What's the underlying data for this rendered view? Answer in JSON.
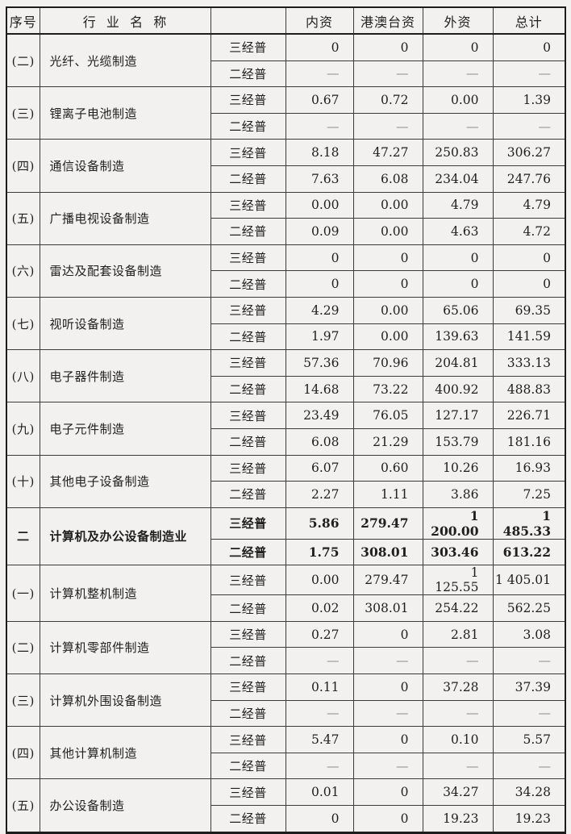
{
  "page": {
    "background_color": "#f2f1ef",
    "border_color": "#1d1d1d",
    "text_color": "#1f1f1f",
    "dash_color": "#8f8f8f"
  },
  "table": {
    "header": [
      "序号",
      "行  业  名  称",
      "",
      "内资",
      "港澳台资",
      "外资",
      "总计"
    ],
    "census_labels": [
      "三经普",
      "二经普"
    ],
    "groups": [
      {
        "no": "(二)",
        "industry": "光纤、光缆制造",
        "bold": false,
        "rows": [
          {
            "census": "三经普",
            "values": [
              "0",
              "0",
              "0",
              "0"
            ]
          },
          {
            "census": "二经普",
            "values": [
              "—",
              "—",
              "—",
              "—"
            ]
          }
        ]
      },
      {
        "no": "(三)",
        "industry": "锂离子电池制造",
        "bold": false,
        "rows": [
          {
            "census": "三经普",
            "values": [
              "0.67",
              "0.72",
              "0.00",
              "1.39"
            ]
          },
          {
            "census": "二经普",
            "values": [
              "—",
              "—",
              "—",
              "—"
            ]
          }
        ]
      },
      {
        "no": "(四)",
        "industry": "通信设备制造",
        "bold": false,
        "rows": [
          {
            "census": "三经普",
            "values": [
              "8.18",
              "47.27",
              "250.83",
              "306.27"
            ]
          },
          {
            "census": "二经普",
            "values": [
              "7.63",
              "6.08",
              "234.04",
              "247.76"
            ]
          }
        ]
      },
      {
        "no": "(五)",
        "industry": "广播电视设备制造",
        "bold": false,
        "rows": [
          {
            "census": "三经普",
            "values": [
              "0.00",
              "0.00",
              "4.79",
              "4.79"
            ]
          },
          {
            "census": "二经普",
            "values": [
              "0.09",
              "0.00",
              "4.63",
              "4.72"
            ]
          }
        ]
      },
      {
        "no": "(六)",
        "industry": "雷达及配套设备制造",
        "bold": false,
        "rows": [
          {
            "census": "三经普",
            "values": [
              "0",
              "0",
              "0",
              "0"
            ]
          },
          {
            "census": "二经普",
            "values": [
              "0",
              "0",
              "0",
              "0"
            ]
          }
        ]
      },
      {
        "no": "(七)",
        "industry": "视听设备制造",
        "bold": false,
        "rows": [
          {
            "census": "三经普",
            "values": [
              "4.29",
              "0.00",
              "65.06",
              "69.35"
            ]
          },
          {
            "census": "二经普",
            "values": [
              "1.97",
              "0.00",
              "139.63",
              "141.59"
            ]
          }
        ]
      },
      {
        "no": "(八)",
        "industry": "电子器件制造",
        "bold": false,
        "rows": [
          {
            "census": "三经普",
            "values": [
              "57.36",
              "70.96",
              "204.81",
              "333.13"
            ]
          },
          {
            "census": "二经普",
            "values": [
              "14.68",
              "73.22",
              "400.92",
              "488.83"
            ]
          }
        ]
      },
      {
        "no": "(九)",
        "industry": "电子元件制造",
        "bold": false,
        "rows": [
          {
            "census": "三经普",
            "values": [
              "23.49",
              "76.05",
              "127.17",
              "226.71"
            ]
          },
          {
            "census": "二经普",
            "values": [
              "6.08",
              "21.29",
              "153.79",
              "181.16"
            ]
          }
        ]
      },
      {
        "no": "(十)",
        "industry": "其他电子设备制造",
        "bold": false,
        "rows": [
          {
            "census": "三经普",
            "values": [
              "6.07",
              "0.60",
              "10.26",
              "16.93"
            ]
          },
          {
            "census": "二经普",
            "values": [
              "2.27",
              "1.11",
              "3.86",
              "7.25"
            ]
          }
        ]
      },
      {
        "no": "二",
        "industry": "计算机及办公设备制造业",
        "bold": true,
        "rows": [
          {
            "census": "三经普",
            "values": [
              "5.86",
              "279.47",
              "1 200.00",
              "1 485.33"
            ]
          },
          {
            "census": "二经普",
            "values": [
              "1.75",
              "308.01",
              "303.46",
              "613.22"
            ]
          }
        ]
      },
      {
        "no": "(一)",
        "industry": "计算机整机制造",
        "bold": false,
        "rows": [
          {
            "census": "三经普",
            "values": [
              "0.00",
              "279.47",
              "1 125.55",
              "1 405.01"
            ]
          },
          {
            "census": "二经普",
            "values": [
              "0.02",
              "308.01",
              "254.22",
              "562.25"
            ]
          }
        ]
      },
      {
        "no": "(二)",
        "industry": "计算机零部件制造",
        "bold": false,
        "rows": [
          {
            "census": "三经普",
            "values": [
              "0.27",
              "0",
              "2.81",
              "3.08"
            ]
          },
          {
            "census": "二经普",
            "values": [
              "—",
              "—",
              "—",
              "—"
            ]
          }
        ]
      },
      {
        "no": "(三)",
        "industry": "计算机外围设备制造",
        "bold": false,
        "rows": [
          {
            "census": "三经普",
            "values": [
              "0.11",
              "0",
              "37.28",
              "37.39"
            ]
          },
          {
            "census": "二经普",
            "values": [
              "—",
              "—",
              "—",
              "—"
            ]
          }
        ]
      },
      {
        "no": "(四)",
        "industry": "其他计算机制造",
        "bold": false,
        "rows": [
          {
            "census": "三经普",
            "values": [
              "5.47",
              "0",
              "0.10",
              "5.57"
            ]
          },
          {
            "census": "二经普",
            "values": [
              "—",
              "—",
              "—",
              "—"
            ]
          }
        ]
      },
      {
        "no": "(五)",
        "industry": "办公设备制造",
        "bold": false,
        "rows": [
          {
            "census": "三经普",
            "values": [
              "0.01",
              "0",
              "34.27",
              "34.28"
            ]
          },
          {
            "census": "二经普",
            "values": [
              "0",
              "0",
              "19.23",
              "19.23"
            ]
          }
        ]
      }
    ]
  }
}
